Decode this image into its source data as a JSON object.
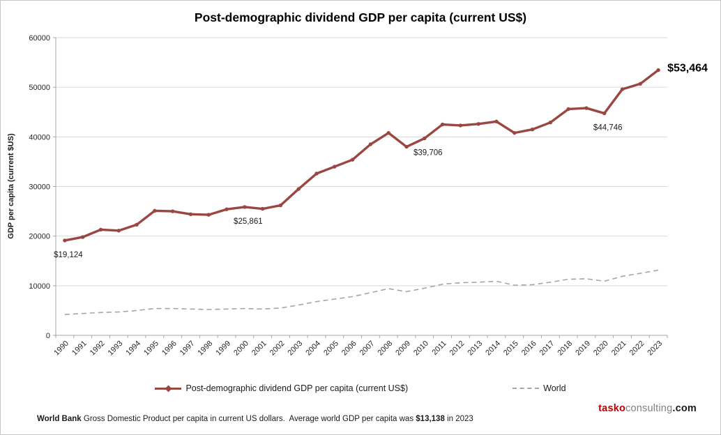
{
  "colors": {
    "main_series": "#9a4742",
    "world_series": "#a6a6a6",
    "gridline": "#d9d9d9",
    "axis": "#a6a6a6",
    "logo_red": "#c00000",
    "logo_gray": "#808080",
    "logo_black": "#1a1a1a"
  },
  "logo": {
    "brand_primary": "tasko",
    "brand_secondary": "consulting",
    "brand_suffix": ".com"
  },
  "footer": {
    "source": "World Bank",
    "note_before": " Gross Domestic Product per capita in current US dollars.  Average world GDP per capita was ",
    "highlight": "$13,138",
    "note_after": " in 2023"
  },
  "chart_data": {
    "type": "line",
    "title": "Post-demographic dividend GDP per capita (current US$)",
    "ylabel": "GDP per capita  (current $US)",
    "xlabel": "",
    "ylim": [
      0,
      60000
    ],
    "ytick_step": 10000,
    "grid": "horizontal",
    "legend_position": "bottom",
    "categories": [
      "1990",
      "1991",
      "1992",
      "1993",
      "1994",
      "1995",
      "1996",
      "1997",
      "1998",
      "1999",
      "2000",
      "2001",
      "2002",
      "2003",
      "2004",
      "2005",
      "2006",
      "2007",
      "2008",
      "2009",
      "2010",
      "2011",
      "2012",
      "2013",
      "2014",
      "2015",
      "2016",
      "2017",
      "2018",
      "2019",
      "2020",
      "2021",
      "2022",
      "2023"
    ],
    "series": [
      {
        "name": "Post-demographic dividend GDP per capita (current US$)",
        "style": "solid-with-markers",
        "values": [
          19124,
          19800,
          21300,
          21100,
          22300,
          25100,
          25000,
          24400,
          24300,
          25400,
          25861,
          25500,
          26200,
          29500,
          32600,
          34000,
          35400,
          38500,
          40800,
          38000,
          39706,
          42500,
          42300,
          42600,
          43100,
          40800,
          41500,
          42900,
          45600,
          45800,
          44746,
          49600,
          50700,
          53464
        ]
      },
      {
        "name": "World",
        "style": "dashed",
        "values": [
          4200,
          4400,
          4600,
          4700,
          5000,
          5400,
          5400,
          5300,
          5200,
          5300,
          5400,
          5300,
          5500,
          6100,
          6800,
          7300,
          7800,
          8600,
          9400,
          8800,
          9500,
          10300,
          10600,
          10700,
          10900,
          10100,
          10200,
          10700,
          11300,
          11400,
          10900,
          11900,
          12500,
          13138
        ]
      }
    ],
    "annotations": [
      {
        "year": "1990",
        "text": "$19,124",
        "placement": "below",
        "emphasis": false
      },
      {
        "year": "2000",
        "text": "$25,861",
        "placement": "below",
        "emphasis": false
      },
      {
        "year": "2010",
        "text": "$39,706",
        "placement": "below",
        "emphasis": false
      },
      {
        "year": "2020",
        "text": "$44,746",
        "placement": "below",
        "emphasis": false
      },
      {
        "year": "2023",
        "text": "$53,464",
        "placement": "right",
        "emphasis": true
      }
    ]
  }
}
